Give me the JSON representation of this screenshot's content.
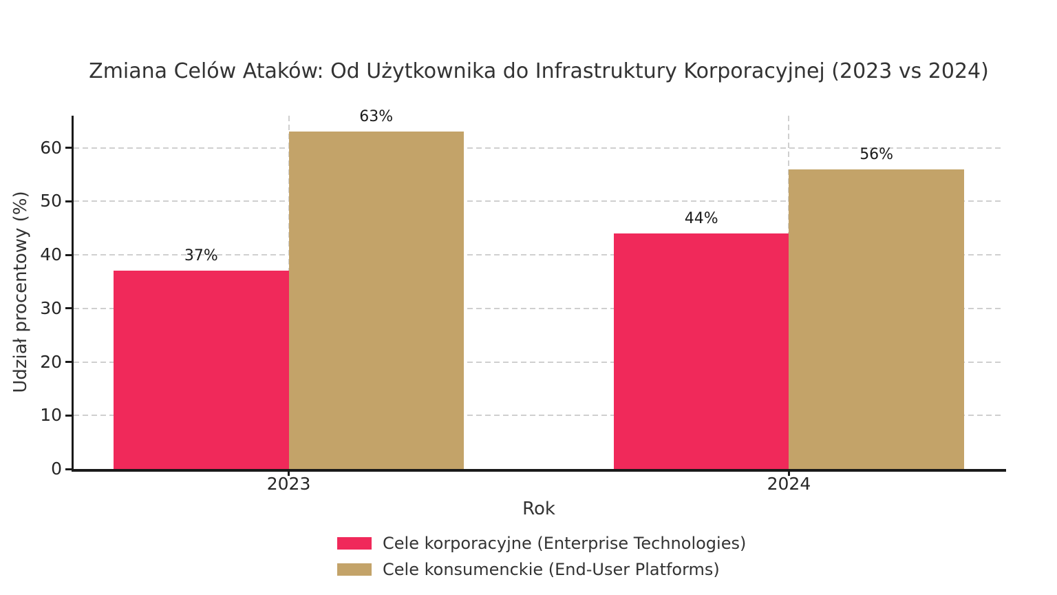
{
  "chart_data": {
    "type": "bar",
    "title": "Zmiana Celów Ataków: Od Użytkownika do Infrastruktury Korporacyjnej (2023 vs 2024)",
    "xlabel": "Rok",
    "ylabel": "Udział procentowy (%)",
    "categories": [
      "2023",
      "2024"
    ],
    "series": [
      {
        "name": "Cele korporacyjne (Enterprise Technologies)",
        "color": "#F0295A",
        "values": [
          37,
          44
        ],
        "labels": [
          "37%",
          "44%"
        ]
      },
      {
        "name": "Cele konsumenckie (End-User Platforms)",
        "color": "#C3A369",
        "values": [
          63,
          56
        ],
        "labels": [
          "63%",
          "56%"
        ]
      }
    ],
    "yticks": [
      0,
      10,
      20,
      30,
      40,
      50,
      60
    ],
    "ylim": [
      0,
      66
    ],
    "xlim": [
      -0.43,
      1.43
    ],
    "bar_width": 0.35,
    "grid": "dashed-horizontal-and-category-vertical",
    "legend_position": "bottom-center",
    "colors": {
      "grid": "#cfcfcf",
      "spine": "#1a1a1a",
      "title_text": "#333333",
      "tick_text": "#262626"
    }
  }
}
